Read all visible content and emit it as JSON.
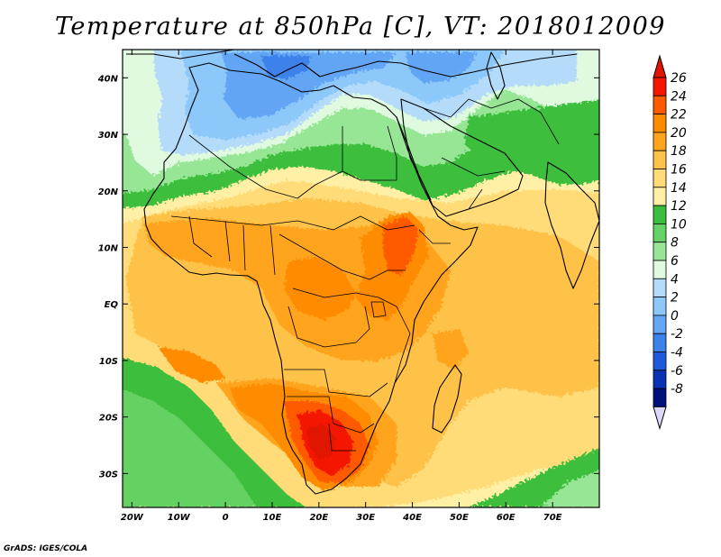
{
  "title": "Temperature at 850hPa [C], VT: 2018012009",
  "credit": "GrADS: IGES/COLA",
  "map": {
    "lon_range": [
      -22,
      80
    ],
    "lat_range": [
      -36,
      45
    ],
    "lat_ticks": [
      {
        "value": 40,
        "label": "40N"
      },
      {
        "value": 30,
        "label": "30N"
      },
      {
        "value": 20,
        "label": "20N"
      },
      {
        "value": 10,
        "label": "10N"
      },
      {
        "value": 0,
        "label": "EQ"
      },
      {
        "value": -10,
        "label": "10S"
      },
      {
        "value": -20,
        "label": "20S"
      },
      {
        "value": -30,
        "label": "30S"
      }
    ],
    "lon_ticks": [
      {
        "value": -20,
        "label": "20W"
      },
      {
        "value": -10,
        "label": "10W"
      },
      {
        "value": 0,
        "label": "0"
      },
      {
        "value": 10,
        "label": "10E"
      },
      {
        "value": 20,
        "label": "20E"
      },
      {
        "value": 30,
        "label": "30E"
      },
      {
        "value": 40,
        "label": "40E"
      },
      {
        "value": 50,
        "label": "50E"
      },
      {
        "value": 60,
        "label": "60E"
      },
      {
        "value": 70,
        "label": "70E"
      }
    ]
  },
  "colorbar": {
    "levels": [
      "26",
      "24",
      "22",
      "20",
      "18",
      "16",
      "14",
      "12",
      "10",
      "8",
      "6",
      "4",
      "2",
      "0",
      "-2",
      "-4",
      "-6",
      "-8"
    ],
    "colors": [
      "#f51600",
      "#ff5a00",
      "#ff8c00",
      "#ffa41c",
      "#ffc24a",
      "#ffdc78",
      "#fff0a6",
      "#3cbe3c",
      "#64d264",
      "#96e696",
      "#e0fae0",
      "#b4dcfa",
      "#8cc8fa",
      "#64a5f5",
      "#3c82eb",
      "#1e5adc",
      "#0a32b4",
      "#00107a"
    ],
    "top_arrow_color": "#e01400",
    "bottom_arrow_color": "#dcd8f8"
  },
  "field_colors": {
    "deep_red": "#e01400",
    "red": "#f51600",
    "red_orange": "#ff5a00",
    "orange": "#ff8c00",
    "light_orange": "#ffa41c",
    "amber": "#ffc24a",
    "yellow": "#ffdc78",
    "pale_yellow": "#fff0a6",
    "green": "#3cbe3c",
    "mid_green": "#64d264",
    "light_green": "#96e696",
    "pale_green": "#e0fae0",
    "pale_blue": "#b4dcfa",
    "sky_blue": "#8cc8fa",
    "blue": "#64a5f5",
    "deep_blue": "#3c82eb"
  }
}
